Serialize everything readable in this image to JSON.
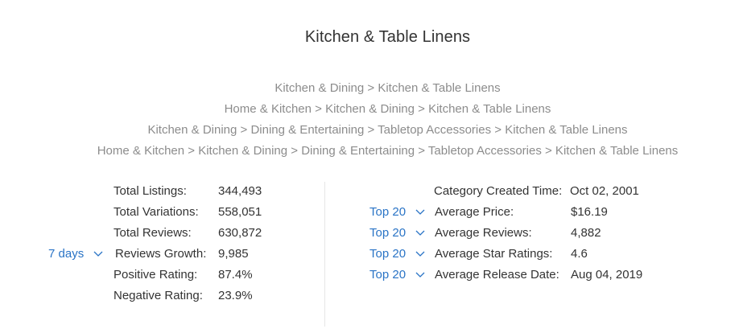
{
  "title": "Kitchen & Table Linens",
  "category_paths": [
    "Kitchen & Dining > Kitchen & Table Linens",
    "Home & Kitchen > Kitchen & Dining > Kitchen & Table Linens",
    "Kitchen & Dining > Dining & Entertaining > Tabletop Accessories > Kitchen & Table Linens",
    "Home & Kitchen > Kitchen & Dining > Dining & Entertaining > Tabletop Accessories > Kitchen & Table Linens"
  ],
  "left_stats": {
    "total_listings": {
      "label": "Total Listings:",
      "value": "344,493"
    },
    "total_variations": {
      "label": "Total Variations:",
      "value": "558,051"
    },
    "total_reviews": {
      "label": "Total Reviews:",
      "value": "630,872"
    },
    "reviews_growth": {
      "label": "Reviews Growth:",
      "value": "9,985",
      "period": "7 days"
    },
    "positive_rating": {
      "label": "Positive Rating:",
      "value": "87.4%"
    },
    "negative_rating": {
      "label": "Negative Rating:",
      "value": "23.9%"
    }
  },
  "right_stats": {
    "category_created": {
      "label": "Category Created Time:",
      "value": "Oct 02, 2001"
    },
    "average_price": {
      "label": "Average Price:",
      "value": "$16.19",
      "scope": "Top 20"
    },
    "average_reviews": {
      "label": "Average Reviews:",
      "value": "4,882",
      "scope": "Top 20"
    },
    "average_star_ratings": {
      "label": "Average Star Ratings:",
      "value": "4.6",
      "scope": "Top 20"
    },
    "average_release_date": {
      "label": "Average Release Date:",
      "value": "Aug 04, 2019",
      "scope": "Top 20"
    }
  },
  "icons": {
    "dropdown": "chevron-down-icon"
  },
  "colors": {
    "link_blue": "#2a74c6",
    "path_gray": "#8c8c8c",
    "text": "#333333",
    "divider": "#e6e6e6"
  }
}
